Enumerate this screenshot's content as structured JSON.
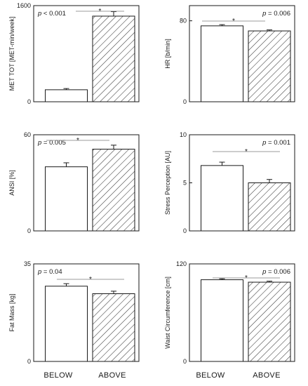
{
  "chart_data": [
    {
      "type": "bar",
      "categories": [
        "BELOW",
        "ABOVE"
      ],
      "values": [
        200,
        1425
      ],
      "errors": [
        20,
        75
      ],
      "ylabel": "MET TOT  [MET-min/week]",
      "ylim": [
        0,
        1600
      ],
      "yticks": [
        "0",
        "1600"
      ],
      "p_value": "p < 0.001",
      "significance": "*"
    },
    {
      "type": "bar",
      "categories": [
        "BELOW",
        "ABOVE"
      ],
      "values": [
        75,
        70
      ],
      "errors": [
        1.2,
        1.0
      ],
      "ylabel": "HR [b/min]",
      "ylim": [
        0,
        95
      ],
      "yticks": [
        "0",
        "80"
      ],
      "p_value": "p = 0.006",
      "significance": "*"
    },
    {
      "type": "bar",
      "categories": [
        "BELOW",
        "ABOVE"
      ],
      "values": [
        40,
        51
      ],
      "errors": [
        2.5,
        2.5
      ],
      "ylabel": "ANSI [%]",
      "ylim": [
        0,
        60
      ],
      "yticks": [
        "0",
        "60"
      ],
      "p_value": "p = 0.005",
      "significance": "*"
    },
    {
      "type": "bar",
      "categories": [
        "BELOW",
        "ABOVE"
      ],
      "values": [
        6.8,
        5.0
      ],
      "errors": [
        0.35,
        0.35
      ],
      "ylabel": "Stress Perception [AU]",
      "ylim": [
        0,
        10
      ],
      "yticks": [
        "0",
        "5",
        "10"
      ],
      "p_value": "p = 0.001",
      "significance": "*"
    },
    {
      "type": "bar",
      "categories": [
        "BELOW",
        "ABOVE"
      ],
      "values": [
        27,
        24.3
      ],
      "errors": [
        0.9,
        0.9
      ],
      "ylabel": "Fat Mass [kg]",
      "ylim": [
        0,
        35
      ],
      "yticks": [
        "0",
        "35"
      ],
      "p_value": "p = 0.04",
      "significance": "*"
    },
    {
      "type": "bar",
      "categories": [
        "BELOW",
        "ABOVE"
      ],
      "values": [
        100.5,
        97.5
      ],
      "errors": [
        1.2,
        1.2
      ],
      "ylabel": "Waist Circumference [cm]",
      "ylim": [
        0,
        120
      ],
      "yticks": [
        "0",
        "120"
      ],
      "p_value": "p = 0.006",
      "significance": "*"
    }
  ],
  "x_axis_labels": [
    "BELOW",
    "ABOVE",
    "BELOW",
    "ABOVE"
  ],
  "colors": {
    "below_fill": "#ffffff",
    "above_hatch": "#3a3a3a",
    "frame": "#1a1a1a"
  }
}
